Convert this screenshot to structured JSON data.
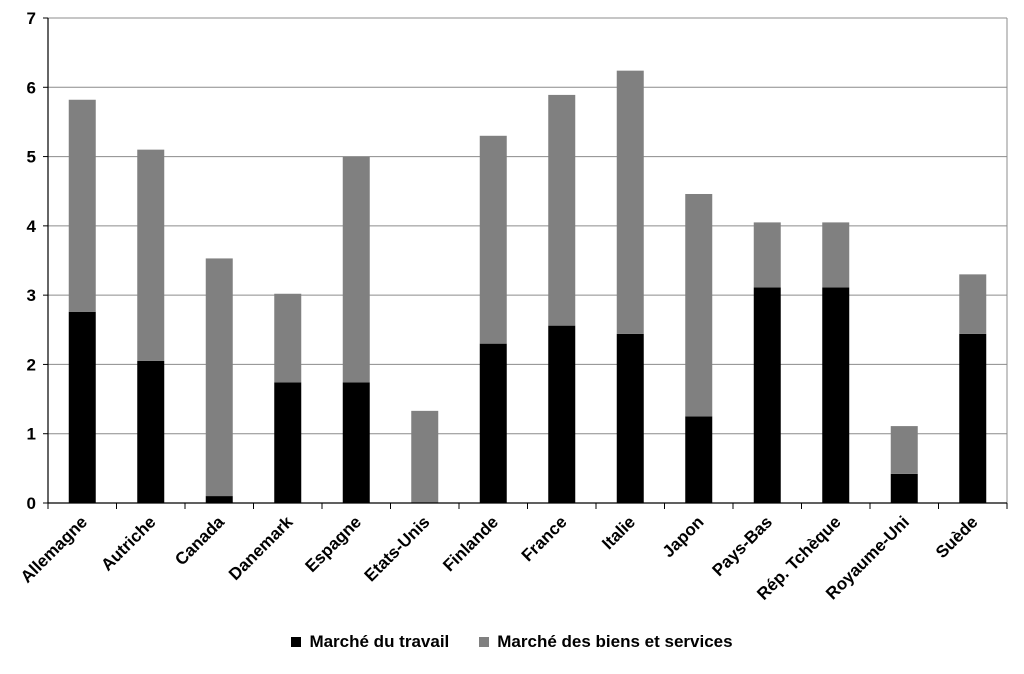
{
  "chart_data": {
    "type": "bar",
    "stacked": true,
    "title": "",
    "xlabel": "",
    "ylabel": "",
    "ylim": [
      0,
      7
    ],
    "yticks": [
      0,
      1,
      2,
      3,
      4,
      5,
      6,
      7
    ],
    "grid": true,
    "legend_position": "bottom",
    "categories": [
      "Allemagne",
      "Autriche",
      "Canada",
      "Danemark",
      "Espagne",
      "Etats-Unis",
      "Finlande",
      "France",
      "Italie",
      "Japon",
      "Pays-Bas",
      "Rép. Tchèque",
      "Royaume-Uni",
      "Suède"
    ],
    "series": [
      {
        "name": "Marché du travail",
        "color": "#000000",
        "values": [
          2.76,
          2.05,
          0.1,
          1.74,
          1.74,
          0.0,
          2.3,
          2.56,
          2.44,
          1.25,
          3.11,
          3.11,
          0.42,
          2.44
        ]
      },
      {
        "name": "Marché des biens et services",
        "color": "#808080",
        "values": [
          3.06,
          3.05,
          3.43,
          1.28,
          3.26,
          1.33,
          3.0,
          3.33,
          3.8,
          3.21,
          0.94,
          0.94,
          0.69,
          0.86
        ]
      }
    ]
  }
}
